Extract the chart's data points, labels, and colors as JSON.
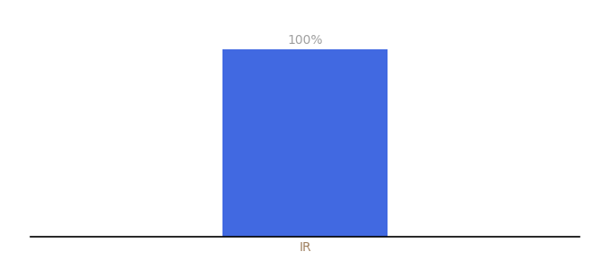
{
  "categories": [
    "IR"
  ],
  "values": [
    100
  ],
  "bar_color": "#4169e1",
  "label_text": "100%",
  "label_color": "#a0a0a0",
  "tick_color": "#a08060",
  "background_color": "#ffffff",
  "ylim": [
    0,
    100
  ],
  "bar_width": 0.6,
  "label_fontsize": 10,
  "tick_fontsize": 10,
  "xlim": [
    -1.0,
    1.0
  ]
}
